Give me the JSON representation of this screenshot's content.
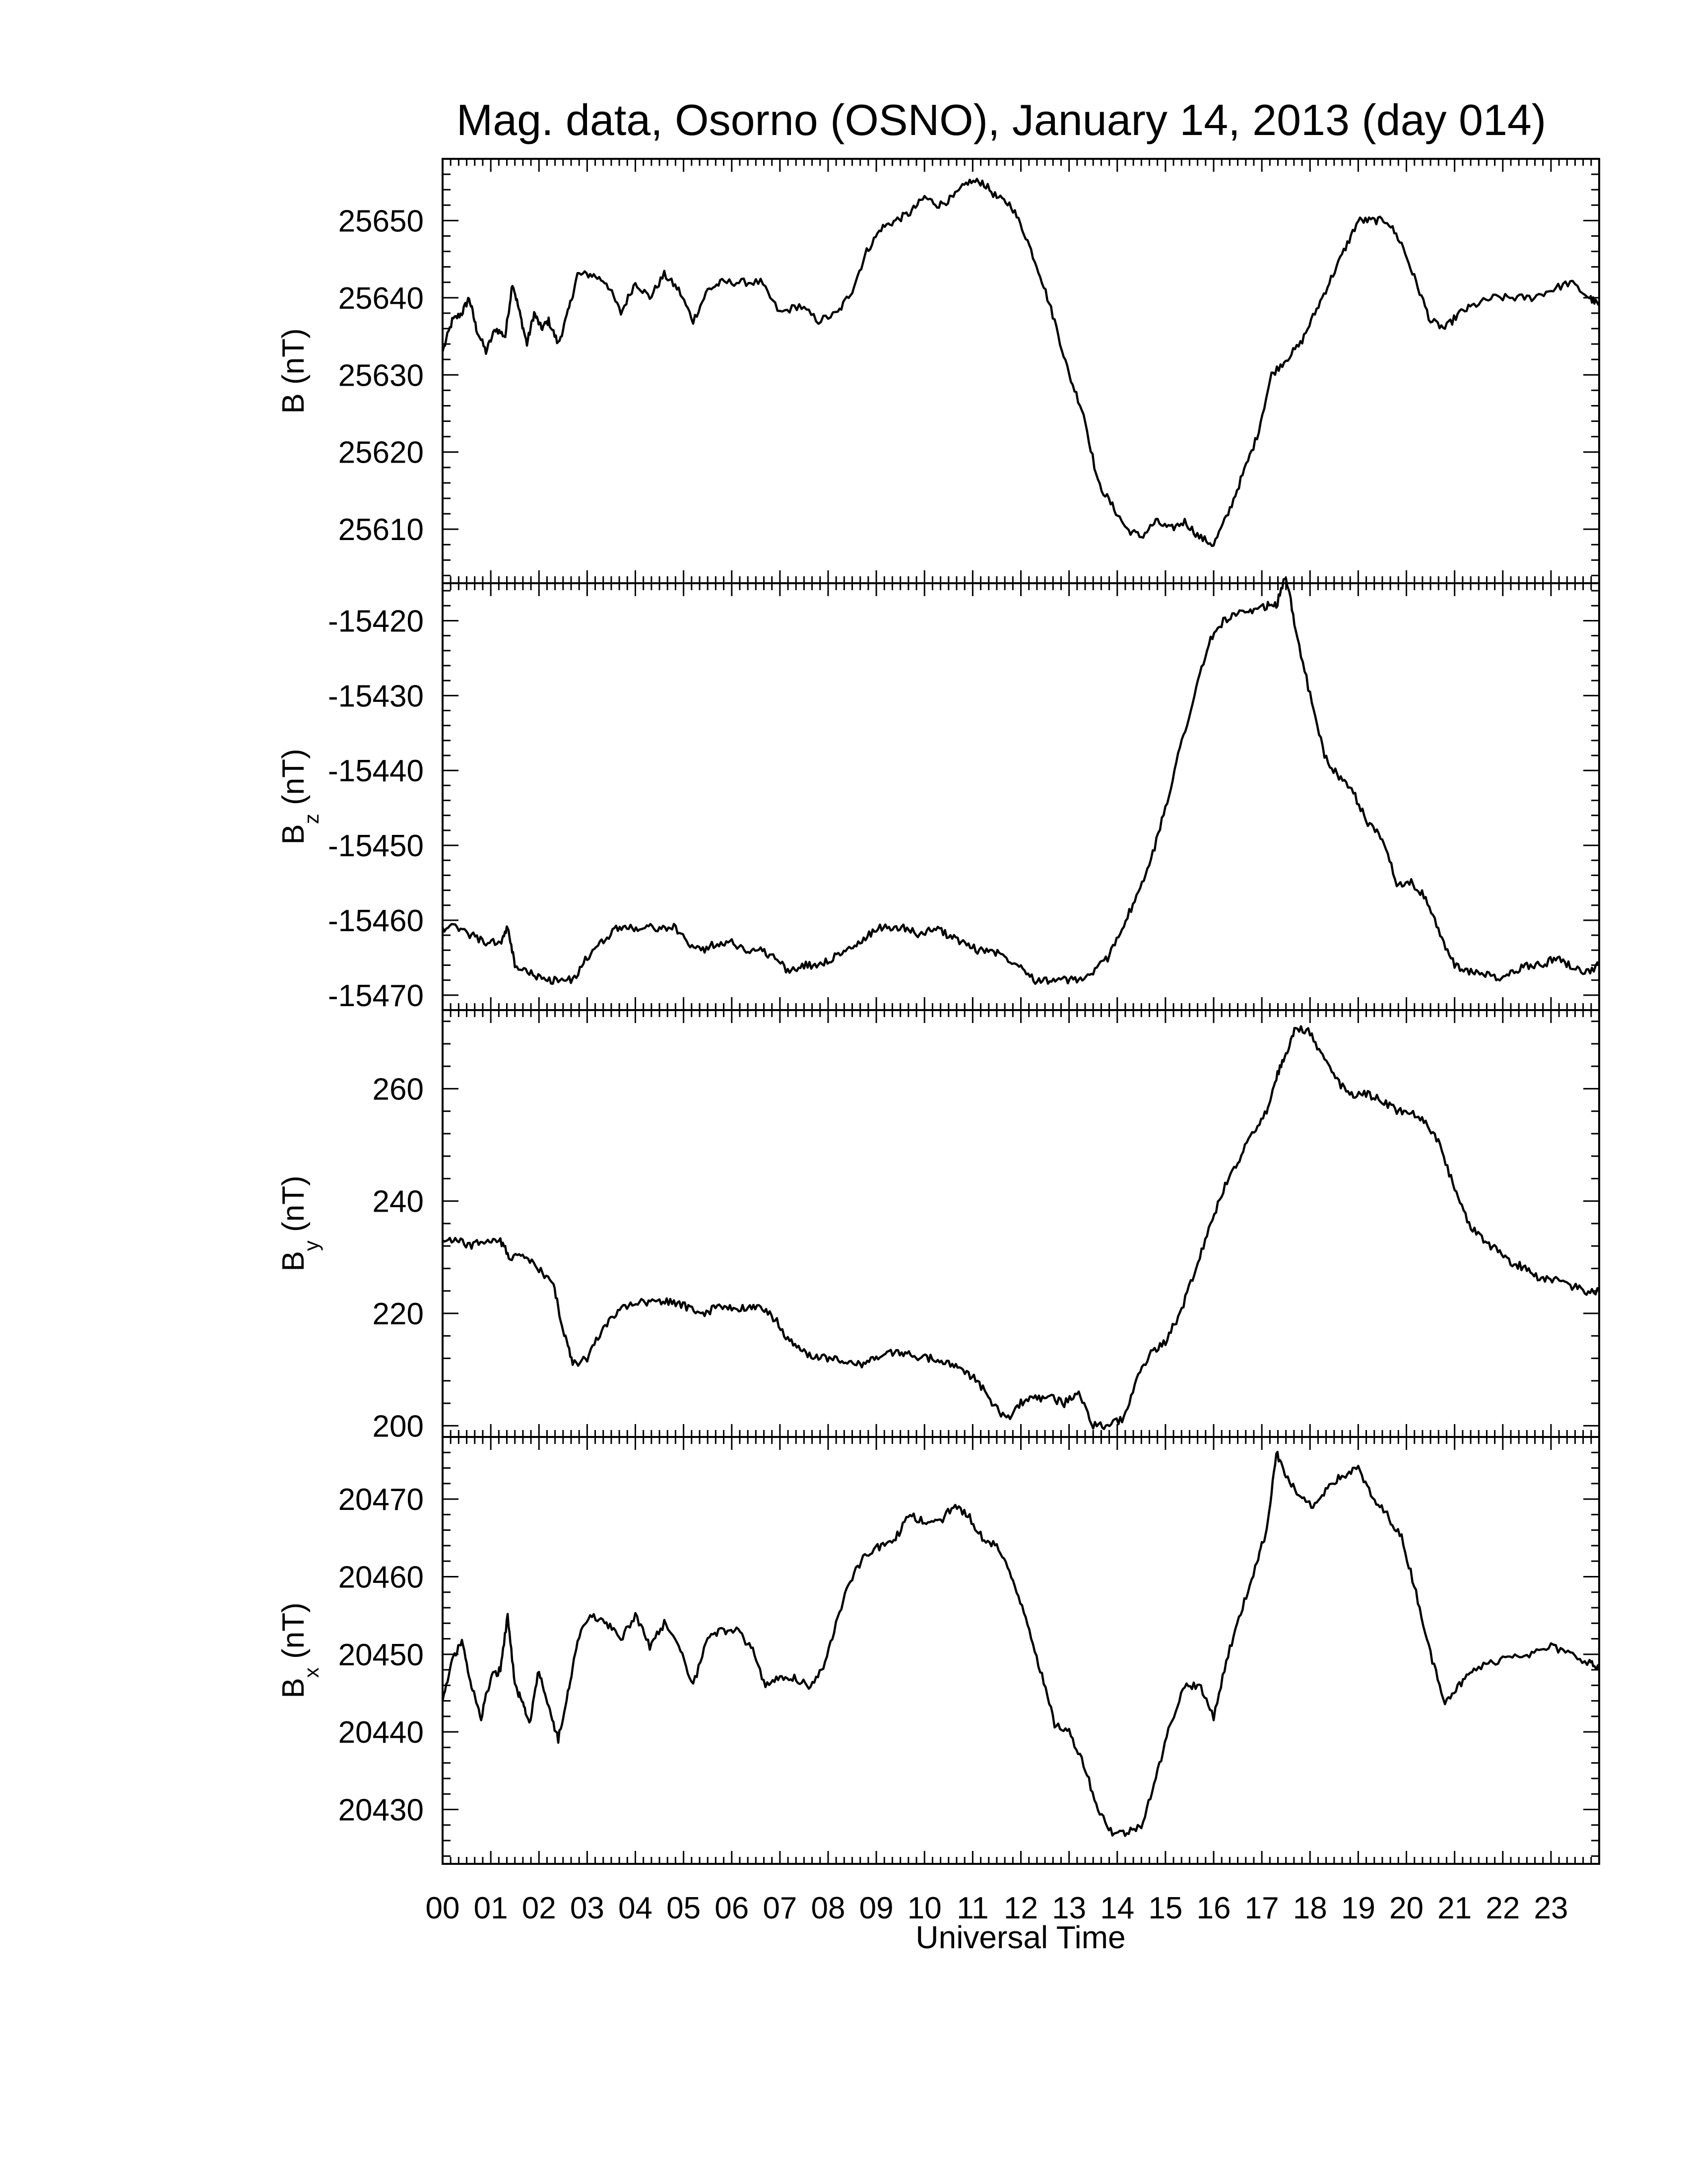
{
  "title": "Mag. data, Osorno (OSNO), January 14, 2013 (day 014)",
  "chart_data": [
    {
      "type": "line",
      "panel": "B",
      "ylabel": "B (nT)",
      "ylabel_main": "B",
      "ylabel_sub": "",
      "ylabel_unit": " (nT)",
      "yticks": [
        25610,
        25620,
        25630,
        25640,
        25650
      ],
      "ylim": [
        25603,
        25658
      ],
      "xlim": [
        0,
        24
      ],
      "x": [
        0,
        0.2,
        0.4,
        0.55,
        0.7,
        0.9,
        1.1,
        1.3,
        1.45,
        1.6,
        1.75,
        1.9,
        2.05,
        2.2,
        2.4,
        2.6,
        2.8,
        3.1,
        3.4,
        3.7,
        4.0,
        4.3,
        4.6,
        4.9,
        5.2,
        5.5,
        5.8,
        6.2,
        6.6,
        7.0,
        7.4,
        7.8,
        8.2,
        8.5,
        8.8,
        9.1,
        9.4,
        9.7,
        10.0,
        10.3,
        10.6,
        10.9,
        11.2,
        11.5,
        11.8,
        12.1,
        12.4,
        12.7,
        13.0,
        13.3,
        13.6,
        13.9,
        14.2,
        14.5,
        14.8,
        15.1,
        15.4,
        15.7,
        16.0,
        16.3,
        16.6,
        16.9,
        17.2,
        17.5,
        17.8,
        18.1,
        18.4,
        18.7,
        19.0,
        19.3,
        19.6,
        19.9,
        20.2,
        20.5,
        20.8,
        21.1,
        21.4,
        21.8,
        22.2,
        22.6,
        23.0,
        23.4,
        23.8,
        24.0
      ],
      "y": [
        25633,
        25637,
        25638,
        25640,
        25636,
        25633,
        25636,
        25635,
        25642,
        25638,
        25634,
        25638,
        25636,
        25637,
        25634,
        25638,
        25643,
        25643,
        25642,
        25638,
        25642,
        25640,
        25643,
        25641,
        25637,
        25641,
        25642,
        25642,
        25642,
        25638,
        25639,
        25637,
        25638,
        25641,
        25646,
        25649,
        25650,
        25651,
        25653,
        25652,
        25653,
        25655,
        25655,
        25653,
        25652,
        25648,
        25643,
        25637,
        25630,
        25625,
        25616,
        25613,
        25610,
        25609,
        25611,
        25610,
        25611,
        25609,
        25608,
        25612,
        25617,
        25622,
        25630,
        25632,
        25634,
        25638,
        25642,
        25646,
        25650,
        25650,
        25650,
        25647,
        25642,
        25637,
        25636,
        25638,
        25639,
        25640,
        25640,
        25640,
        25641,
        25642,
        25640,
        25639
      ]
    },
    {
      "type": "line",
      "panel": "Bz",
      "ylabel": "Bz (nT)",
      "ylabel_main": "B",
      "ylabel_sub": "z",
      "ylabel_unit": " (nT)",
      "yticks": [
        -15470,
        -15460,
        -15450,
        -15440,
        -15430,
        -15420
      ],
      "ylim": [
        -15472,
        -15415
      ],
      "xlim": [
        0,
        24
      ],
      "x": [
        0,
        0.3,
        0.6,
        0.9,
        1.2,
        1.35,
        1.5,
        1.8,
        2.1,
        2.4,
        2.7,
        3.0,
        3.3,
        3.6,
        3.9,
        4.2,
        4.5,
        4.8,
        5.1,
        5.4,
        5.7,
        6.0,
        6.3,
        6.6,
        6.9,
        7.2,
        7.5,
        7.8,
        8.1,
        8.4,
        8.7,
        9.0,
        9.3,
        9.6,
        9.9,
        10.2,
        10.5,
        10.8,
        11.1,
        11.4,
        11.7,
        12.0,
        12.3,
        12.6,
        12.9,
        13.2,
        13.5,
        13.8,
        14.1,
        14.4,
        14.7,
        15.0,
        15.3,
        15.6,
        15.9,
        16.2,
        16.5,
        16.8,
        17.1,
        17.3,
        17.5,
        17.7,
        18.0,
        18.3,
        18.6,
        18.9,
        19.2,
        19.5,
        19.8,
        20.1,
        20.4,
        20.7,
        21.0,
        21.3,
        21.6,
        21.9,
        22.2,
        22.5,
        22.8,
        23.1,
        23.4,
        23.7,
        24.0
      ],
      "y": [
        -15461,
        -15461,
        -15462,
        -15463,
        -15463,
        -15461,
        -15466,
        -15467,
        -15468,
        -15468,
        -15468,
        -15465,
        -15463,
        -15461,
        -15461,
        -15461,
        -15461,
        -15461,
        -15463,
        -15464,
        -15463,
        -15463,
        -15464,
        -15464,
        -15465,
        -15467,
        -15466,
        -15466,
        -15465,
        -15464,
        -15463,
        -15461,
        -15461,
        -15461,
        -15462,
        -15461,
        -15462,
        -15463,
        -15464,
        -15464,
        -15465,
        -15466,
        -15468,
        -15468,
        -15468,
        -15468,
        -15467,
        -15465,
        -15461,
        -15457,
        -15452,
        -15445,
        -15437,
        -15430,
        -15423,
        -15420,
        -15419,
        -15419,
        -15418,
        -15418,
        -15414,
        -15421,
        -15430,
        -15438,
        -15441,
        -15443,
        -15447,
        -15449,
        -15455,
        -15455,
        -15457,
        -15462,
        -15466,
        -15467,
        -15467,
        -15468,
        -15467,
        -15466,
        -15466,
        -15465,
        -15466,
        -15467,
        -15466
      ]
    },
    {
      "type": "line",
      "panel": "By",
      "ylabel": "By (nT)",
      "ylabel_main": "B",
      "ylabel_sub": "y",
      "ylabel_unit": " (nT)",
      "yticks": [
        200,
        220,
        240,
        260
      ],
      "ylim": [
        198,
        274
      ],
      "xlim": [
        0,
        24
      ],
      "x": [
        0,
        0.3,
        0.6,
        0.9,
        1.2,
        1.4,
        1.7,
        2.0,
        2.3,
        2.5,
        2.7,
        3.0,
        3.3,
        3.6,
        3.9,
        4.2,
        4.5,
        4.8,
        5.1,
        5.4,
        5.7,
        6.0,
        6.3,
        6.6,
        6.9,
        7.2,
        7.5,
        7.8,
        8.1,
        8.4,
        8.7,
        9.0,
        9.3,
        9.6,
        9.9,
        10.2,
        10.5,
        10.8,
        11.1,
        11.4,
        11.7,
        12.0,
        12.3,
        12.6,
        12.9,
        13.2,
        13.5,
        13.8,
        14.1,
        14.4,
        14.7,
        15.0,
        15.3,
        15.6,
        15.9,
        16.2,
        16.5,
        16.8,
        17.1,
        17.3,
        17.5,
        17.7,
        18.0,
        18.3,
        18.6,
        18.9,
        19.2,
        19.5,
        19.8,
        20.1,
        20.4,
        20.7,
        21.0,
        21.3,
        21.6,
        21.9,
        22.2,
        22.5,
        22.8,
        23.1,
        23.4,
        23.7,
        24.0
      ],
      "y": [
        233,
        233,
        232,
        233,
        233,
        230,
        230,
        228,
        225,
        217,
        211,
        212,
        217,
        220,
        222,
        222,
        222,
        222,
        221,
        220,
        221,
        221,
        221,
        221,
        219,
        215,
        213,
        212,
        212,
        211,
        211,
        212,
        213,
        213,
        212,
        212,
        211,
        210,
        208,
        204,
        201,
        204,
        205,
        205,
        204,
        206,
        200,
        200,
        201,
        208,
        213,
        215,
        220,
        227,
        235,
        242,
        247,
        252,
        256,
        262,
        266,
        271,
        270,
        265,
        261,
        259,
        259,
        258,
        256,
        256,
        254,
        250,
        242,
        236,
        233,
        231,
        229,
        228,
        226,
        226,
        225,
        224,
        224
      ]
    },
    {
      "type": "line",
      "panel": "Bx",
      "ylabel": "Bx (nT)",
      "ylabel_main": "B",
      "ylabel_sub": "x",
      "ylabel_unit": " (nT)",
      "yticks": [
        20430,
        20440,
        20450,
        20460,
        20470
      ],
      "ylim": [
        20423,
        20478
      ],
      "xlim": [
        0,
        24
      ],
      "x": [
        0,
        0.2,
        0.4,
        0.6,
        0.8,
        1.0,
        1.2,
        1.35,
        1.5,
        1.65,
        1.8,
        2.0,
        2.2,
        2.4,
        2.6,
        2.8,
        3.1,
        3.4,
        3.7,
        4.0,
        4.3,
        4.6,
        4.9,
        5.2,
        5.5,
        5.8,
        6.1,
        6.4,
        6.7,
        7.0,
        7.3,
        7.6,
        7.9,
        8.2,
        8.5,
        8.8,
        9.1,
        9.4,
        9.7,
        10.0,
        10.3,
        10.6,
        10.9,
        11.2,
        11.5,
        11.8,
        12.1,
        12.4,
        12.7,
        13.0,
        13.3,
        13.6,
        13.9,
        14.2,
        14.5,
        14.8,
        15.1,
        15.4,
        15.7,
        16.0,
        16.3,
        16.6,
        16.9,
        17.1,
        17.3,
        17.5,
        17.8,
        18.1,
        18.4,
        18.7,
        19.0,
        19.3,
        19.6,
        19.9,
        20.2,
        20.5,
        20.8,
        21.1,
        21.4,
        21.8,
        22.2,
        22.6,
        23.0,
        23.4,
        23.8,
        24.0
      ],
      "y": [
        20444,
        20449,
        20452,
        20446,
        20442,
        20447,
        20448,
        20455,
        20446,
        20444,
        20441,
        20448,
        20443,
        20439,
        20445,
        20452,
        20455,
        20454,
        20452,
        20455,
        20451,
        20454,
        20451,
        20446,
        20452,
        20453,
        20453,
        20451,
        20446,
        20447,
        20447,
        20446,
        20448,
        20455,
        20460,
        20463,
        20464,
        20465,
        20468,
        20467,
        20467,
        20469,
        20468,
        20465,
        20464,
        20460,
        20455,
        20448,
        20441,
        20440,
        20436,
        20430,
        20427,
        20427,
        20428,
        20434,
        20441,
        20446,
        20446,
        20442,
        20450,
        20456,
        20462,
        20466,
        20476,
        20473,
        20470,
        20469,
        20472,
        20473,
        20474,
        20470,
        20468,
        20465,
        20458,
        20450,
        20444,
        20446,
        20448,
        20449,
        20450,
        20450,
        20451,
        20450,
        20449,
        20448
      ]
    }
  ],
  "x_axis": {
    "label": "Universal Time",
    "ticks": [
      "00",
      "01",
      "02",
      "03",
      "04",
      "05",
      "06",
      "07",
      "08",
      "09",
      "10",
      "11",
      "12",
      "13",
      "14",
      "15",
      "16",
      "17",
      "18",
      "19",
      "20",
      "21",
      "22",
      "23"
    ]
  }
}
